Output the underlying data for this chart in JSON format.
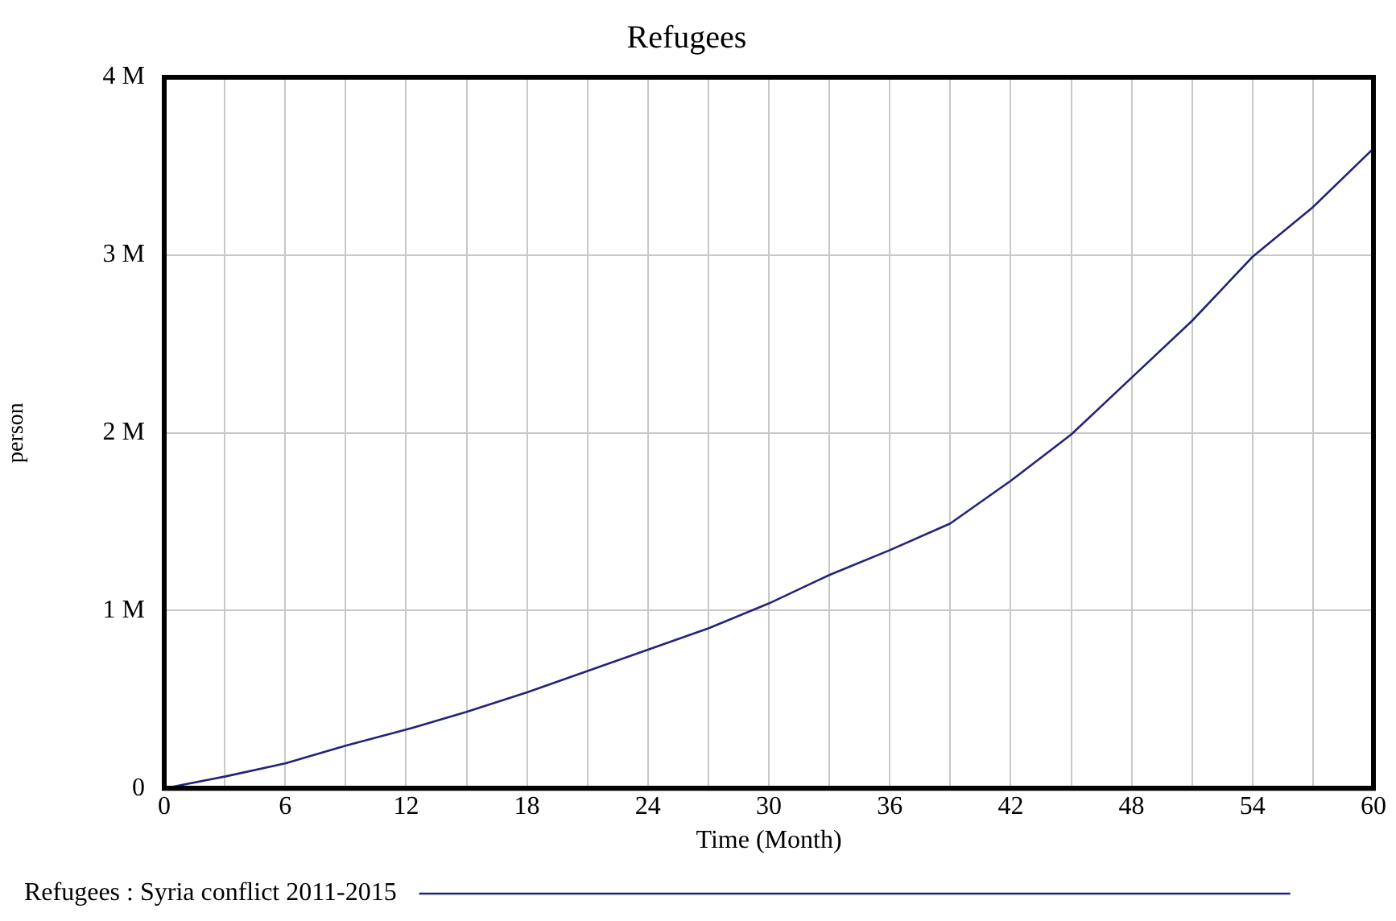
{
  "chart_data": {
    "type": "line",
    "title": "Refugees",
    "xlabel": "Time (Month)",
    "ylabel": "person",
    "x": [
      0,
      3,
      6,
      9,
      12,
      15,
      18,
      21,
      24,
      27,
      30,
      33,
      36,
      39,
      42,
      45,
      48,
      51,
      54,
      57,
      60
    ],
    "series": [
      {
        "name": "Refugees : Syria conflict 2011-2015",
        "color": "#23237a",
        "values": [
          0,
          66000,
          140000,
          240000,
          330000,
          430000,
          540000,
          660000,
          780000,
          900000,
          1040000,
          1200000,
          1340000,
          1490000,
          1730000,
          1990000,
          2310000,
          2630000,
          2990000,
          3270000,
          3600000
        ]
      }
    ],
    "xlim": [
      0,
      60
    ],
    "xticks": [
      0,
      {
        "value": 3,
        "label": null
      },
      6,
      {
        "value": 9,
        "label": null
      },
      12,
      {
        "value": 15,
        "label": null
      },
      18,
      {
        "value": 21,
        "label": null
      },
      24,
      {
        "value": 27,
        "label": null
      },
      30,
      {
        "value": 33,
        "label": null
      },
      36,
      {
        "value": 39,
        "label": null
      },
      42,
      {
        "value": 45,
        "label": null
      },
      48,
      {
        "value": 51,
        "label": null
      },
      54,
      {
        "value": 57,
        "label": null
      },
      60
    ],
    "ylim": [
      0,
      4000000
    ],
    "yticks": [
      {
        "value": 0,
        "label": "0"
      },
      {
        "value": 1000000,
        "label": "1 M"
      },
      {
        "value": 2000000,
        "label": "2 M"
      },
      {
        "value": 3000000,
        "label": "3 M"
      },
      {
        "value": 4000000,
        "label": "4 M"
      }
    ],
    "grid": true,
    "legend": "bottom",
    "marker": "none",
    "line_style": "solid"
  }
}
